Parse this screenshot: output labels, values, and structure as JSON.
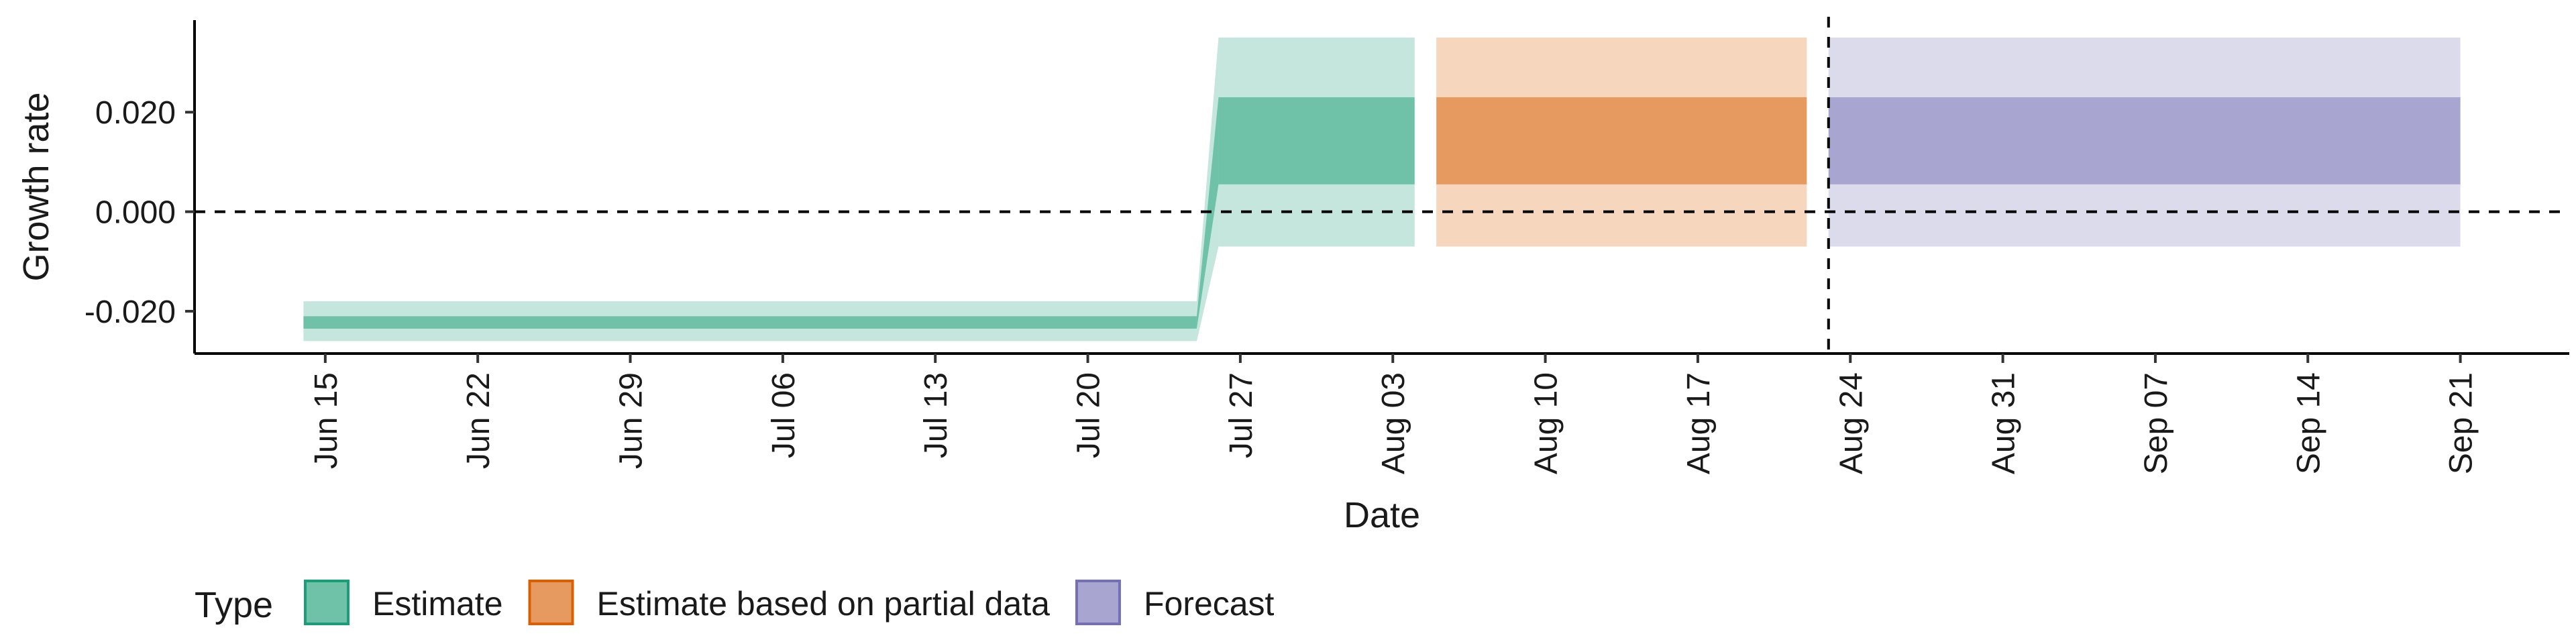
{
  "chart_data": {
    "type": "area",
    "xlabel": "Date",
    "ylabel": "Growth rate",
    "ylim": [
      -0.0285,
      0.0385
    ],
    "yticks": [
      "0.020",
      "0.000",
      "-0.020"
    ],
    "ytick_values": [
      0.02,
      0.0,
      -0.02
    ],
    "xticks": [
      "Jun 15",
      "Jun 22",
      "Jun 29",
      "Jul 06",
      "Jul 13",
      "Jul 20",
      "Jul 27",
      "Aug 03",
      "Aug 10",
      "Aug 17",
      "Aug 24",
      "Aug 31",
      "Sep 07",
      "Sep 14",
      "Sep 21"
    ],
    "xtick_dates": [
      "2020-06-15",
      "2020-06-22",
      "2020-06-29",
      "2020-07-06",
      "2020-07-13",
      "2020-07-20",
      "2020-07-27",
      "2020-08-03",
      "2020-08-10",
      "2020-08-17",
      "2020-08-24",
      "2020-08-31",
      "2020-09-07",
      "2020-09-14",
      "2020-09-21"
    ],
    "xlim": [
      "2020-06-09",
      "2020-09-26"
    ],
    "hline_y": 0.0,
    "vline_x": "2020-08-23",
    "legend_title": "Type",
    "legend_position": "bottom",
    "series": [
      {
        "name": "Estimate",
        "color": "#6fc2a8",
        "outer_color": "#c5e6dc",
        "segments": [
          {
            "x_start": "2020-06-14",
            "x_end": "2020-07-25",
            "outer": [
              -0.026,
              -0.018
            ],
            "inner": [
              -0.0235,
              -0.021
            ]
          },
          {
            "x_start": "2020-07-26",
            "x_end": "2020-08-04",
            "outer": [
              -0.007,
              0.035
            ],
            "inner": [
              0.0055,
              0.023
            ]
          }
        ]
      },
      {
        "name": "Estimate based on partial data",
        "color": "#e69a60",
        "outer_color": "#f6d7be",
        "segments": [
          {
            "x_start": "2020-08-05",
            "x_end": "2020-08-22",
            "outer": [
              -0.007,
              0.035
            ],
            "inner": [
              0.0055,
              0.023
            ]
          }
        ]
      },
      {
        "name": "Forecast",
        "color": "#a8a6d0",
        "outer_color": "#dcdbec",
        "segments": [
          {
            "x_start": "2020-08-23",
            "x_end": "2020-09-21",
            "outer": [
              -0.007,
              0.035
            ],
            "inner": [
              0.0055,
              0.023
            ]
          }
        ]
      }
    ],
    "legend": [
      {
        "label": "Estimate",
        "fill": "#6fc2a8",
        "border": "#1b9e77"
      },
      {
        "label": "Estimate based on partial data",
        "fill": "#e69a60",
        "border": "#d95f02"
      },
      {
        "label": "Forecast",
        "fill": "#a8a6d0",
        "border": "#7570b3"
      }
    ]
  }
}
